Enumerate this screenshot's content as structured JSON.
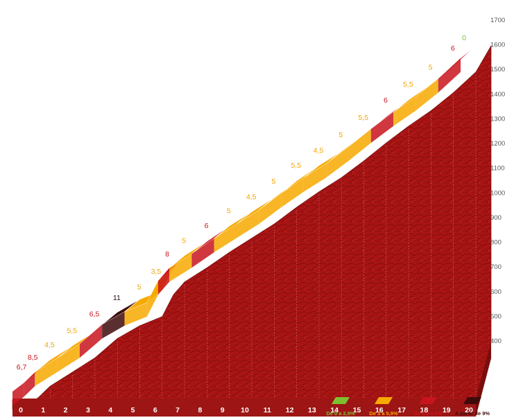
{
  "chart_data": {
    "type": "area",
    "xlabel": "",
    "ylabel": "",
    "x_ticks": [
      "0",
      "1",
      "2",
      "3",
      "4",
      "5",
      "6",
      "7",
      "8",
      "9",
      "10",
      "11",
      "12",
      "13",
      "14",
      "15",
      "16",
      "17",
      "18",
      "19",
      "20"
    ],
    "ylim": [
      400,
      1700
    ],
    "y_ticks": [
      "400",
      "500",
      "600",
      "700",
      "800",
      "900",
      "1000",
      "1100",
      "1200",
      "1300",
      "1400",
      "1500",
      "1600",
      "1700"
    ],
    "altitude_km": [
      0,
      0.5,
      1,
      2,
      3,
      4,
      5,
      6,
      6.5,
      7,
      8,
      9,
      10,
      11,
      12,
      13,
      14,
      15,
      16,
      17,
      18,
      19,
      20
    ],
    "altitude_m": [
      405,
      438,
      480,
      535,
      590,
      665,
      715,
      750,
      835,
      885,
      940,
      1000,
      1055,
      1110,
      1175,
      1235,
      1290,
      1355,
      1425,
      1490,
      1550,
      1620,
      1700
    ],
    "gradients": [
      "6,7",
      "8,5",
      "4,5",
      "5,5",
      "6,5",
      "11",
      "5",
      "3,5",
      "8",
      "5",
      "6",
      "5",
      "4,5",
      "5",
      "5,5",
      "4,5",
      "5",
      "5,5",
      "6",
      "5,5",
      "5",
      "6",
      "0"
    ],
    "legend": [
      {
        "label": "De 0 a 2,9%",
        "color": "#7dc02f"
      },
      {
        "label": "De 3 a 5,9%",
        "color": "#f7a900"
      },
      {
        "label": "De 6 a 8,9%",
        "color": "#c8141c"
      },
      {
        "label": "A partir de 9%",
        "color": "#3e0b0b"
      }
    ]
  }
}
